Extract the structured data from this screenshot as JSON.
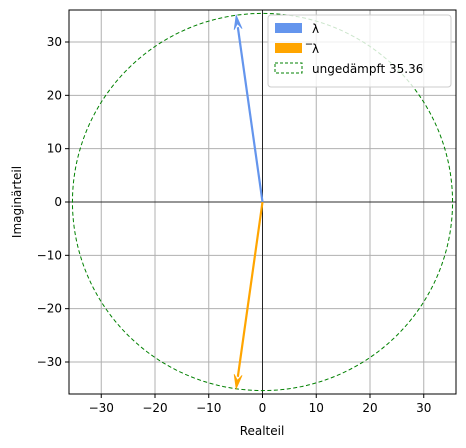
{
  "chart_data": {
    "type": "scatter",
    "title": "",
    "xlabel": "Realteil",
    "ylabel": "Imaginärteil",
    "xlim": [
      -36,
      36
    ],
    "ylim": [
      -36,
      36
    ],
    "xticks": [
      -30,
      -20,
      -10,
      0,
      10,
      20,
      30
    ],
    "yticks": [
      -30,
      -20,
      -10,
      0,
      10,
      20,
      30
    ],
    "grid": true,
    "legend_position": "top-right",
    "series": [
      {
        "name": "λ",
        "kind": "arrow",
        "from": [
          0,
          0
        ],
        "to": [
          -4.9,
          35.0
        ],
        "color": "#6495ED"
      },
      {
        "name": "̅λ",
        "kind": "arrow",
        "from": [
          0,
          0
        ],
        "to": [
          -4.9,
          -35.0
        ],
        "color": "#FFA500"
      },
      {
        "name": "ungedämpft 35.36",
        "kind": "circle",
        "center": [
          0,
          0
        ],
        "radius": 35.36,
        "color": "#008000",
        "linestyle": "dashed"
      }
    ]
  }
}
